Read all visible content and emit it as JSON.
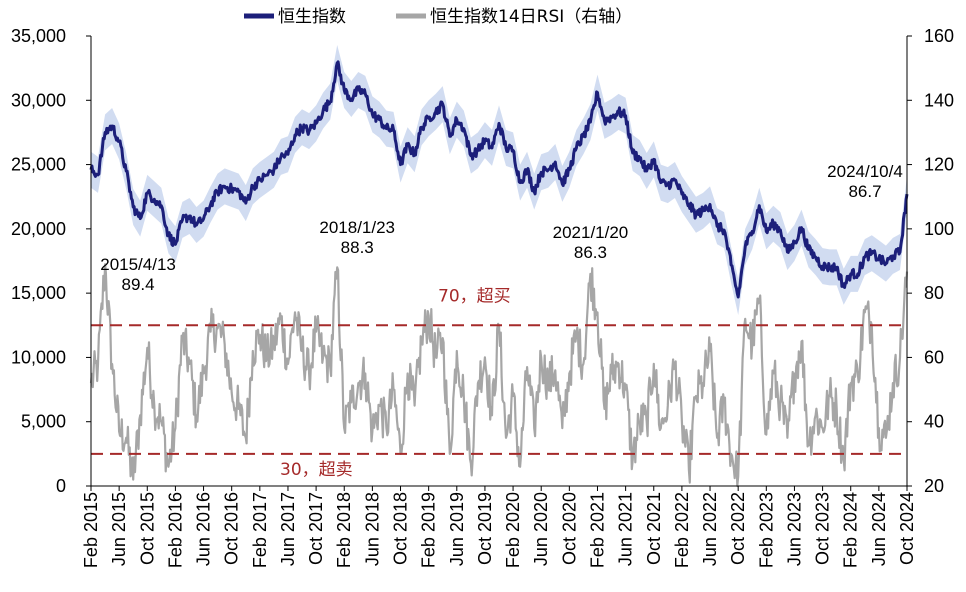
{
  "legend": {
    "hsi_label": "恒生指数",
    "rsi_label": "恒生指数14日RSI（右轴）"
  },
  "colors": {
    "hsi": "#1c1f7a",
    "hsi_band": "#c9d6ee",
    "rsi": "#a6a6a6",
    "reference": "#a52a2a",
    "axis": "#000000"
  },
  "chart_data": {
    "type": "line",
    "grid": false,
    "legend_position": "top",
    "left_axis": {
      "ylim": [
        0,
        35000
      ],
      "ticks": [
        0,
        5000,
        10000,
        15000,
        20000,
        25000,
        30000,
        35000
      ],
      "tick_labels": [
        "0",
        "5,000",
        "10,000",
        "15,000",
        "20,000",
        "25,000",
        "30,000",
        "35,000"
      ]
    },
    "right_axis": {
      "ylim": [
        20,
        160
      ],
      "ticks": [
        20,
        40,
        60,
        80,
        100,
        120,
        140,
        160
      ],
      "tick_labels": [
        "20",
        "40",
        "60",
        "80",
        "100",
        "120",
        "140",
        "160"
      ]
    },
    "x_axis": {
      "start": "2015-02",
      "end": "2024-10",
      "tick_labels": [
        "Feb 2015",
        "Jun 2015",
        "Oct 2015",
        "Feb 2016",
        "Jun 2016",
        "Oct 2016",
        "Feb 2017",
        "Jun 2017",
        "Oct 2017",
        "Feb 2018",
        "Jun 2018",
        "Oct 2018",
        "Feb 2019",
        "Jun 2019",
        "Oct 2019",
        "Feb 2020",
        "Jun 2020",
        "Oct 2020",
        "Feb 2021",
        "Jun 2021",
        "Oct 2021",
        "Feb 2022",
        "Jun 2022",
        "Oct 2022",
        "Feb 2023",
        "Jun 2023",
        "Oct 2023",
        "Feb 2024",
        "Jun 2024",
        "Oct 2024"
      ]
    },
    "series": [
      {
        "name": "恒生指数",
        "axis": "left",
        "points": [
          [
            "2015-02",
            24600
          ],
          [
            "2015-03",
            24200
          ],
          [
            "2015-04",
            27500
          ],
          [
            "2015-05",
            28000
          ],
          [
            "2015-06",
            26800
          ],
          [
            "2015-07",
            24500
          ],
          [
            "2015-08",
            21700
          ],
          [
            "2015-09",
            20800
          ],
          [
            "2015-10",
            22800
          ],
          [
            "2015-11",
            22300
          ],
          [
            "2015-12",
            21800
          ],
          [
            "2016-01",
            19500
          ],
          [
            "2016-02",
            18800
          ],
          [
            "2016-03",
            20700
          ],
          [
            "2016-04",
            21000
          ],
          [
            "2016-05",
            20300
          ],
          [
            "2016-06",
            20800
          ],
          [
            "2016-07",
            21900
          ],
          [
            "2016-08",
            22900
          ],
          [
            "2016-09",
            23300
          ],
          [
            "2016-10",
            23100
          ],
          [
            "2016-11",
            22900
          ],
          [
            "2016-12",
            22000
          ],
          [
            "2017-01",
            23300
          ],
          [
            "2017-02",
            23800
          ],
          [
            "2017-03",
            24200
          ],
          [
            "2017-04",
            24600
          ],
          [
            "2017-05",
            25600
          ],
          [
            "2017-06",
            25800
          ],
          [
            "2017-07",
            27300
          ],
          [
            "2017-08",
            27900
          ],
          [
            "2017-09",
            27600
          ],
          [
            "2017-10",
            28200
          ],
          [
            "2017-11",
            29200
          ],
          [
            "2017-12",
            29900
          ],
          [
            "2018-01",
            32900
          ],
          [
            "2018-02",
            30800
          ],
          [
            "2018-03",
            30100
          ],
          [
            "2018-04",
            30800
          ],
          [
            "2018-05",
            30500
          ],
          [
            "2018-06",
            28900
          ],
          [
            "2018-07",
            28500
          ],
          [
            "2018-08",
            27800
          ],
          [
            "2018-09",
            27700
          ],
          [
            "2018-10",
            25000
          ],
          [
            "2018-11",
            26500
          ],
          [
            "2018-12",
            25800
          ],
          [
            "2019-01",
            27900
          ],
          [
            "2019-02",
            28600
          ],
          [
            "2019-03",
            29100
          ],
          [
            "2019-04",
            29700
          ],
          [
            "2019-05",
            27200
          ],
          [
            "2019-06",
            28500
          ],
          [
            "2019-07",
            27800
          ],
          [
            "2019-08",
            25700
          ],
          [
            "2019-09",
            26100
          ],
          [
            "2019-10",
            26900
          ],
          [
            "2019-11",
            26300
          ],
          [
            "2019-12",
            28200
          ],
          [
            "2020-01",
            26300
          ],
          [
            "2020-02",
            26100
          ],
          [
            "2020-03",
            23600
          ],
          [
            "2020-04",
            24600
          ],
          [
            "2020-05",
            22900
          ],
          [
            "2020-06",
            24400
          ],
          [
            "2020-07",
            24600
          ],
          [
            "2020-08",
            25200
          ],
          [
            "2020-09",
            23500
          ],
          [
            "2020-10",
            24600
          ],
          [
            "2020-11",
            26300
          ],
          [
            "2020-12",
            27200
          ],
          [
            "2021-01",
            28300
          ],
          [
            "2021-02",
            30600
          ],
          [
            "2021-03",
            28400
          ],
          [
            "2021-04",
            28700
          ],
          [
            "2021-05",
            29100
          ],
          [
            "2021-06",
            28800
          ],
          [
            "2021-07",
            25900
          ],
          [
            "2021-08",
            25500
          ],
          [
            "2021-09",
            24500
          ],
          [
            "2021-10",
            25400
          ],
          [
            "2021-11",
            23600
          ],
          [
            "2021-12",
            23400
          ],
          [
            "2022-01",
            23800
          ],
          [
            "2022-02",
            22700
          ],
          [
            "2022-03",
            21900
          ],
          [
            "2022-04",
            21100
          ],
          [
            "2022-05",
            21400
          ],
          [
            "2022-06",
            21900
          ],
          [
            "2022-07",
            20200
          ],
          [
            "2022-08",
            19900
          ],
          [
            "2022-09",
            17200
          ],
          [
            "2022-10",
            14700
          ],
          [
            "2022-11",
            18600
          ],
          [
            "2022-12",
            19800
          ],
          [
            "2023-01",
            21800
          ],
          [
            "2023-02",
            19800
          ],
          [
            "2023-03",
            20400
          ],
          [
            "2023-04",
            19900
          ],
          [
            "2023-05",
            18200
          ],
          [
            "2023-06",
            18900
          ],
          [
            "2023-07",
            20100
          ],
          [
            "2023-08",
            18400
          ],
          [
            "2023-09",
            17800
          ],
          [
            "2023-10",
            17100
          ],
          [
            "2023-11",
            17000
          ],
          [
            "2023-12",
            17000
          ],
          [
            "2024-01",
            15500
          ],
          [
            "2024-02",
            16500
          ],
          [
            "2024-03",
            16500
          ],
          [
            "2024-04",
            17800
          ],
          [
            "2024-05",
            18100
          ],
          [
            "2024-06",
            17700
          ],
          [
            "2024-07",
            17300
          ],
          [
            "2024-08",
            17900
          ],
          [
            "2024-09",
            18200
          ],
          [
            "2024-10",
            22700
          ]
        ]
      },
      {
        "name": "恒生指数14日RSI（右轴）",
        "axis": "right",
        "points": [
          [
            "2015-02",
            52
          ],
          [
            "2015-03",
            58
          ],
          [
            "2015-04",
            89
          ],
          [
            "2015-05",
            58
          ],
          [
            "2015-06",
            37
          ],
          [
            "2015-07",
            35
          ],
          [
            "2015-08",
            22
          ],
          [
            "2015-09",
            42
          ],
          [
            "2015-10",
            63
          ],
          [
            "2015-11",
            45
          ],
          [
            "2015-12",
            40
          ],
          [
            "2016-01",
            26
          ],
          [
            "2016-02",
            38
          ],
          [
            "2016-03",
            66
          ],
          [
            "2016-04",
            58
          ],
          [
            "2016-05",
            42
          ],
          [
            "2016-06",
            55
          ],
          [
            "2016-07",
            68
          ],
          [
            "2016-08",
            69
          ],
          [
            "2016-09",
            64
          ],
          [
            "2016-10",
            49
          ],
          [
            "2016-11",
            44
          ],
          [
            "2016-12",
            35
          ],
          [
            "2017-01",
            62
          ],
          [
            "2017-02",
            67
          ],
          [
            "2017-03",
            60
          ],
          [
            "2017-04",
            64
          ],
          [
            "2017-05",
            72
          ],
          [
            "2017-06",
            58
          ],
          [
            "2017-07",
            74
          ],
          [
            "2017-08",
            62
          ],
          [
            "2017-09",
            55
          ],
          [
            "2017-10",
            68
          ],
          [
            "2017-11",
            60
          ],
          [
            "2017-12",
            57
          ],
          [
            "2018-01",
            88
          ],
          [
            "2018-02",
            38
          ],
          [
            "2018-03",
            46
          ],
          [
            "2018-04",
            52
          ],
          [
            "2018-05",
            55
          ],
          [
            "2018-06",
            37
          ],
          [
            "2018-07",
            45
          ],
          [
            "2018-08",
            38
          ],
          [
            "2018-09",
            50
          ],
          [
            "2018-10",
            30
          ],
          [
            "2018-11",
            55
          ],
          [
            "2018-12",
            45
          ],
          [
            "2019-01",
            65
          ],
          [
            "2019-02",
            73
          ],
          [
            "2019-03",
            60
          ],
          [
            "2019-04",
            66
          ],
          [
            "2019-05",
            30
          ],
          [
            "2019-06",
            62
          ],
          [
            "2019-07",
            48
          ],
          [
            "2019-08",
            27
          ],
          [
            "2019-09",
            52
          ],
          [
            "2019-10",
            60
          ],
          [
            "2019-11",
            42
          ],
          [
            "2019-12",
            70
          ],
          [
            "2020-01",
            35
          ],
          [
            "2020-02",
            48
          ],
          [
            "2020-03",
            26
          ],
          [
            "2020-04",
            57
          ],
          [
            "2020-05",
            38
          ],
          [
            "2020-06",
            60
          ],
          [
            "2020-07",
            52
          ],
          [
            "2020-08",
            56
          ],
          [
            "2020-09",
            38
          ],
          [
            "2020-10",
            55
          ],
          [
            "2020-11",
            67
          ],
          [
            "2020-12",
            58
          ],
          [
            "2021-01",
            86
          ],
          [
            "2021-02",
            74
          ],
          [
            "2021-03",
            44
          ],
          [
            "2021-04",
            55
          ],
          [
            "2021-05",
            58
          ],
          [
            "2021-06",
            50
          ],
          [
            "2021-07",
            28
          ],
          [
            "2021-08",
            40
          ],
          [
            "2021-09",
            40
          ],
          [
            "2021-10",
            58
          ],
          [
            "2021-11",
            38
          ],
          [
            "2021-12",
            45
          ],
          [
            "2022-01",
            58
          ],
          [
            "2022-02",
            40
          ],
          [
            "2022-03",
            25
          ],
          [
            "2022-04",
            48
          ],
          [
            "2022-05",
            52
          ],
          [
            "2022-06",
            62
          ],
          [
            "2022-07",
            35
          ],
          [
            "2022-08",
            46
          ],
          [
            "2022-09",
            30
          ],
          [
            "2022-10",
            23
          ],
          [
            "2022-11",
            72
          ],
          [
            "2022-12",
            64
          ],
          [
            "2023-01",
            78
          ],
          [
            "2023-02",
            36
          ],
          [
            "2023-03",
            55
          ],
          [
            "2023-04",
            46
          ],
          [
            "2023-05",
            35
          ],
          [
            "2023-06",
            55
          ],
          [
            "2023-07",
            65
          ],
          [
            "2023-08",
            33
          ],
          [
            "2023-09",
            42
          ],
          [
            "2023-10",
            38
          ],
          [
            "2023-11",
            48
          ],
          [
            "2023-12",
            44
          ],
          [
            "2024-01",
            28
          ],
          [
            "2024-02",
            52
          ],
          [
            "2024-03",
            55
          ],
          [
            "2024-04",
            74
          ],
          [
            "2024-05",
            70
          ],
          [
            "2024-06",
            38
          ],
          [
            "2024-07",
            35
          ],
          [
            "2024-08",
            52
          ],
          [
            "2024-09",
            60
          ],
          [
            "2024-10",
            86.7
          ]
        ]
      }
    ],
    "reference_lines": [
      {
        "axis": "right",
        "value": 70,
        "label": "70，超买"
      },
      {
        "axis": "right",
        "value": 30,
        "label": "30，超卖"
      }
    ],
    "annotations": [
      {
        "date": "2015-04",
        "line1": "2015/4/13",
        "line2": "89.4"
      },
      {
        "date": "2018-01",
        "line1": "2018/1/23",
        "line2": "88.3"
      },
      {
        "date": "2021-01",
        "line1": "2021/1/20",
        "line2": "86.3"
      },
      {
        "date": "2024-10",
        "line1": "2024/10/4",
        "line2": "86.7"
      }
    ]
  }
}
